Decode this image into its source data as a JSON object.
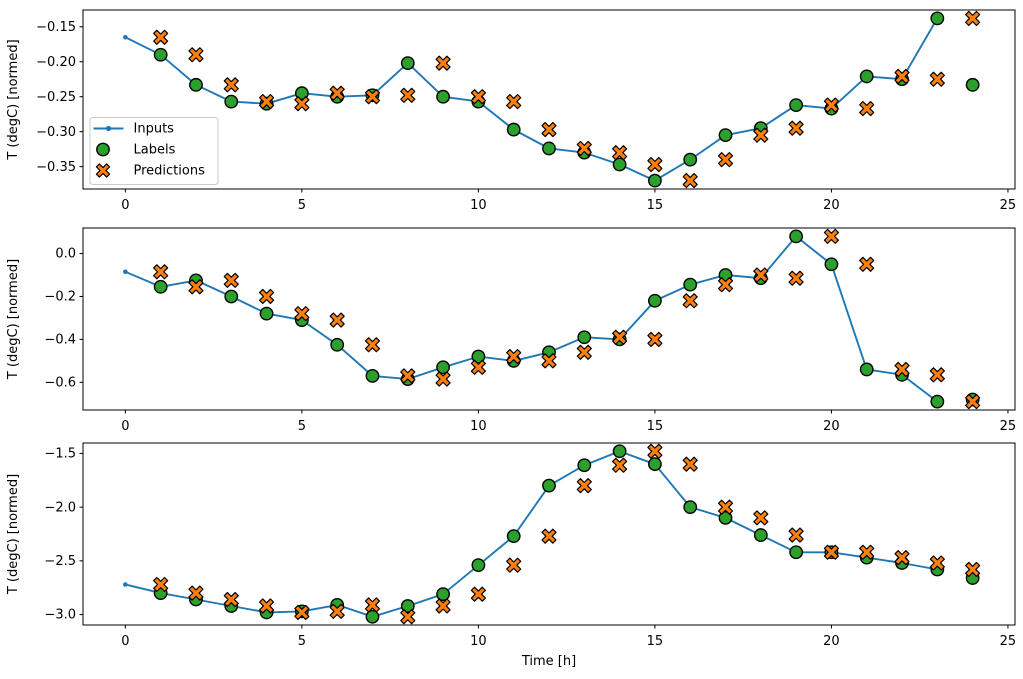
{
  "figure": {
    "background": "#ffffff",
    "xlabel": "Time [h]",
    "ylabel": "T (degC) [normed]",
    "colors": {
      "inputs_line": "#1f77b4",
      "labels_marker": "#2ca02c",
      "predictions_marker": "#ff7f0e",
      "marker_edge": "#000000",
      "legend_border": "#cccccc",
      "spine": "#000000"
    },
    "legend": {
      "items": [
        {
          "label": "Inputs",
          "marker": "line-dot-icon",
          "color": "#1f77b4"
        },
        {
          "label": "Labels",
          "marker": "circle-icon",
          "color": "#2ca02c"
        },
        {
          "label": "Predictions",
          "marker": "x-icon",
          "color": "#ff7f0e"
        }
      ]
    }
  },
  "chart_data": [
    {
      "type": "line",
      "title": "",
      "xlabel": "",
      "ylabel": "T (degC) [normed]",
      "xlim": [
        -1.2,
        25.2
      ],
      "ylim": [
        -0.382,
        -0.126
      ],
      "xticks": [
        0,
        5,
        10,
        15,
        20,
        25
      ],
      "xtick_labels": [
        "0",
        "5",
        "10",
        "15",
        "20",
        "25"
      ],
      "yticks": [
        -0.15,
        -0.2,
        -0.25,
        -0.3,
        -0.35
      ],
      "ytick_labels": [
        "−0.15",
        "−0.20",
        "−0.25",
        "−0.30",
        "−0.35"
      ],
      "grid": false,
      "legend": true,
      "legend_position": "lower-left-of-upper-area",
      "series": [
        {
          "name": "Inputs",
          "render": "line+dot",
          "color": "#1f77b4",
          "x": [
            0,
            1,
            2,
            3,
            4,
            5,
            6,
            7,
            8,
            9,
            10,
            11,
            12,
            13,
            14,
            15,
            16,
            17,
            18,
            19,
            20,
            21,
            22,
            23
          ],
          "y": [
            -0.165,
            -0.19,
            -0.233,
            -0.257,
            -0.26,
            -0.245,
            -0.25,
            -0.248,
            -0.202,
            -0.25,
            -0.257,
            -0.297,
            -0.324,
            -0.33,
            -0.347,
            -0.37,
            -0.34,
            -0.305,
            -0.295,
            -0.262,
            -0.267,
            -0.221,
            -0.225,
            -0.138
          ]
        },
        {
          "name": "Labels",
          "render": "scatter-circle",
          "color": "#2ca02c",
          "x": [
            1,
            2,
            3,
            4,
            5,
            6,
            7,
            8,
            9,
            10,
            11,
            12,
            13,
            14,
            15,
            16,
            17,
            18,
            19,
            20,
            21,
            22,
            23,
            24
          ],
          "y": [
            -0.19,
            -0.233,
            -0.257,
            -0.26,
            -0.245,
            -0.25,
            -0.248,
            -0.202,
            -0.25,
            -0.257,
            -0.297,
            -0.324,
            -0.33,
            -0.347,
            -0.37,
            -0.34,
            -0.305,
            -0.295,
            -0.262,
            -0.267,
            -0.221,
            -0.225,
            -0.138,
            -0.233
          ]
        },
        {
          "name": "Predictions",
          "render": "scatter-x",
          "color": "#ff7f0e",
          "x": [
            1,
            2,
            3,
            4,
            5,
            6,
            7,
            8,
            9,
            10,
            11,
            12,
            13,
            14,
            15,
            16,
            17,
            18,
            19,
            20,
            21,
            22,
            23,
            24
          ],
          "y": [
            -0.165,
            -0.19,
            -0.233,
            -0.257,
            -0.26,
            -0.245,
            -0.25,
            -0.248,
            -0.202,
            -0.25,
            -0.257,
            -0.297,
            -0.324,
            -0.33,
            -0.347,
            -0.37,
            -0.34,
            -0.305,
            -0.295,
            -0.262,
            -0.267,
            -0.221,
            -0.225,
            -0.138
          ]
        }
      ]
    },
    {
      "type": "line",
      "title": "",
      "xlabel": "",
      "ylabel": "T (degC) [normed]",
      "xlim": [
        -1.2,
        25.2
      ],
      "ylim": [
        -0.729,
        0.119
      ],
      "xticks": [
        0,
        5,
        10,
        15,
        20,
        25
      ],
      "xtick_labels": [
        "0",
        "5",
        "10",
        "15",
        "20",
        "25"
      ],
      "yticks": [
        0.0,
        -0.2,
        -0.4,
        -0.6
      ],
      "ytick_labels": [
        "0.0",
        "−0.2",
        "−0.4",
        "−0.6"
      ],
      "grid": false,
      "legend": false,
      "series": [
        {
          "name": "Inputs",
          "render": "line+dot",
          "color": "#1f77b4",
          "x": [
            0,
            1,
            2,
            3,
            4,
            5,
            6,
            7,
            8,
            9,
            10,
            11,
            12,
            13,
            14,
            15,
            16,
            17,
            18,
            19,
            20,
            21,
            22,
            23
          ],
          "y": [
            -0.085,
            -0.155,
            -0.125,
            -0.2,
            -0.28,
            -0.31,
            -0.425,
            -0.57,
            -0.585,
            -0.53,
            -0.48,
            -0.5,
            -0.46,
            -0.39,
            -0.4,
            -0.22,
            -0.145,
            -0.1,
            -0.115,
            0.08,
            -0.05,
            -0.54,
            -0.565,
            -0.69
          ]
        },
        {
          "name": "Labels",
          "render": "scatter-circle",
          "color": "#2ca02c",
          "x": [
            1,
            2,
            3,
            4,
            5,
            6,
            7,
            8,
            9,
            10,
            11,
            12,
            13,
            14,
            15,
            16,
            17,
            18,
            19,
            20,
            21,
            22,
            23,
            24
          ],
          "y": [
            -0.155,
            -0.125,
            -0.2,
            -0.28,
            -0.31,
            -0.425,
            -0.57,
            -0.585,
            -0.53,
            -0.48,
            -0.5,
            -0.46,
            -0.39,
            -0.4,
            -0.22,
            -0.145,
            -0.1,
            -0.115,
            0.08,
            -0.05,
            -0.54,
            -0.565,
            -0.69,
            -0.68
          ]
        },
        {
          "name": "Predictions",
          "render": "scatter-x",
          "color": "#ff7f0e",
          "x": [
            1,
            2,
            3,
            4,
            5,
            6,
            7,
            8,
            9,
            10,
            11,
            12,
            13,
            14,
            15,
            16,
            17,
            18,
            19,
            20,
            21,
            22,
            23,
            24
          ],
          "y": [
            -0.085,
            -0.155,
            -0.125,
            -0.2,
            -0.28,
            -0.31,
            -0.425,
            -0.57,
            -0.585,
            -0.53,
            -0.48,
            -0.5,
            -0.46,
            -0.39,
            -0.4,
            -0.22,
            -0.145,
            -0.1,
            -0.115,
            0.08,
            -0.05,
            -0.54,
            -0.565,
            -0.69
          ]
        }
      ]
    },
    {
      "type": "line",
      "title": "",
      "xlabel": "Time [h]",
      "ylabel": "T (degC) [normed]",
      "xlim": [
        -1.2,
        25.2
      ],
      "ylim": [
        -3.097,
        -1.403
      ],
      "xticks": [
        0,
        5,
        10,
        15,
        20,
        25
      ],
      "xtick_labels": [
        "0",
        "5",
        "10",
        "15",
        "20",
        "25"
      ],
      "yticks": [
        -1.5,
        -2.0,
        -2.5,
        -3.0
      ],
      "ytick_labels": [
        "−1.5",
        "−2.0",
        "−2.5",
        "−3.0"
      ],
      "grid": false,
      "legend": false,
      "series": [
        {
          "name": "Inputs",
          "render": "line+dot",
          "color": "#1f77b4",
          "x": [
            0,
            1,
            2,
            3,
            4,
            5,
            6,
            7,
            8,
            9,
            10,
            11,
            12,
            13,
            14,
            15,
            16,
            17,
            18,
            19,
            20,
            21,
            22,
            23
          ],
          "y": [
            -2.72,
            -2.8,
            -2.86,
            -2.92,
            -2.98,
            -2.97,
            -2.91,
            -3.02,
            -2.92,
            -2.81,
            -2.54,
            -2.27,
            -1.8,
            -1.61,
            -1.48,
            -1.6,
            -2.0,
            -2.1,
            -2.26,
            -2.42,
            -2.42,
            -2.47,
            -2.52,
            -2.58
          ]
        },
        {
          "name": "Labels",
          "render": "scatter-circle",
          "color": "#2ca02c",
          "x": [
            1,
            2,
            3,
            4,
            5,
            6,
            7,
            8,
            9,
            10,
            11,
            12,
            13,
            14,
            15,
            16,
            17,
            18,
            19,
            20,
            21,
            22,
            23,
            24
          ],
          "y": [
            -2.8,
            -2.86,
            -2.92,
            -2.98,
            -2.97,
            -2.91,
            -3.02,
            -2.92,
            -2.81,
            -2.54,
            -2.27,
            -1.8,
            -1.61,
            -1.48,
            -1.6,
            -2.0,
            -2.1,
            -2.26,
            -2.42,
            -2.42,
            -2.47,
            -2.52,
            -2.58,
            -2.66
          ]
        },
        {
          "name": "Predictions",
          "render": "scatter-x",
          "color": "#ff7f0e",
          "x": [
            1,
            2,
            3,
            4,
            5,
            6,
            7,
            8,
            9,
            10,
            11,
            12,
            13,
            14,
            15,
            16,
            17,
            18,
            19,
            20,
            21,
            22,
            23,
            24
          ],
          "y": [
            -2.72,
            -2.8,
            -2.86,
            -2.92,
            -2.98,
            -2.97,
            -2.91,
            -3.02,
            -2.92,
            -2.81,
            -2.54,
            -2.27,
            -1.8,
            -1.61,
            -1.48,
            -1.6,
            -2.0,
            -2.1,
            -2.26,
            -2.42,
            -2.42,
            -2.47,
            -2.52,
            -2.58
          ]
        }
      ]
    }
  ]
}
